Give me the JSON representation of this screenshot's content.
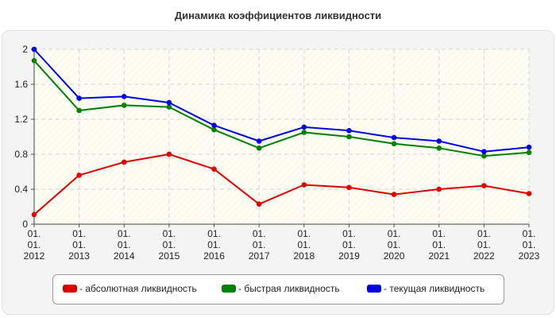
{
  "chart_data": {
    "type": "line",
    "title": "Динамика коэффициентов ликвидности",
    "categories": [
      [
        "01.",
        "01.",
        "2012"
      ],
      [
        "01.",
        "01.",
        "2013"
      ],
      [
        "01.",
        "01.",
        "2014"
      ],
      [
        "01.",
        "01.",
        "2015"
      ],
      [
        "01.",
        "01.",
        "2016"
      ],
      [
        "01.",
        "01.",
        "2017"
      ],
      [
        "01.",
        "01.",
        "2018"
      ],
      [
        "01.",
        "01.",
        "2019"
      ],
      [
        "01.",
        "01.",
        "2020"
      ],
      [
        "01.",
        "01.",
        "2021"
      ],
      [
        "01.",
        "01.",
        "2022"
      ],
      [
        "01.",
        "01.",
        "2023"
      ]
    ],
    "y_ticks": [
      "0",
      "0.4",
      "0.8",
      "1.2",
      "1.6",
      "2"
    ],
    "ylim": [
      0,
      2
    ],
    "grid": true,
    "legend_position": "bottom",
    "series": [
      {
        "name": "- абсолютная ликвидность",
        "color": "#e00000",
        "values": [
          0.11,
          0.56,
          0.71,
          0.8,
          0.63,
          0.23,
          0.45,
          0.42,
          0.34,
          0.4,
          0.44,
          0.35
        ]
      },
      {
        "name": "- быстрая ликвидность",
        "color": "#008000",
        "values": [
          1.87,
          1.3,
          1.36,
          1.34,
          1.08,
          0.87,
          1.05,
          1.0,
          0.92,
          0.87,
          0.78,
          0.82
        ]
      },
      {
        "name": "- текущая ликвидность",
        "color": "#0000e6",
        "values": [
          2.0,
          1.44,
          1.46,
          1.39,
          1.13,
          0.95,
          1.11,
          1.07,
          0.99,
          0.95,
          0.83,
          0.88
        ]
      }
    ]
  }
}
